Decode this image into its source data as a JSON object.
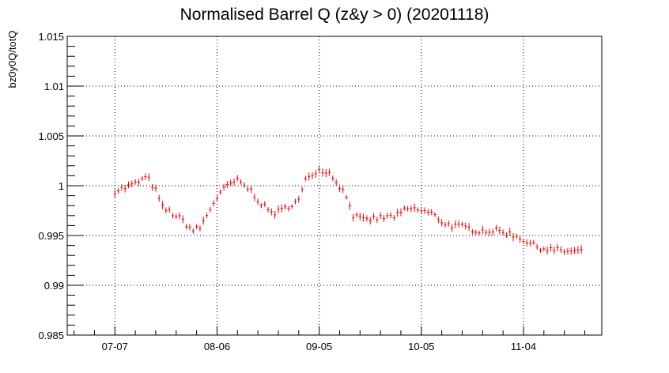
{
  "chart_data": {
    "type": "scatter",
    "title": "Normalised Barrel Q (z&y > 0) (20201118)",
    "xlabel": "",
    "ylabel": "bz0y0Q/totQ",
    "x_axis_type": "date",
    "xlim": [
      "2020-06-23",
      "2020-11-27"
    ],
    "ylim": [
      0.985,
      1.015
    ],
    "x_ticks": [
      {
        "date": "2020-07-07",
        "label": "07-07"
      },
      {
        "date": "2020-08-06",
        "label": "08-06"
      },
      {
        "date": "2020-09-05",
        "label": "09-05"
      },
      {
        "date": "2020-10-05",
        "label": "10-05"
      },
      {
        "date": "2020-11-04",
        "label": "11-04"
      }
    ],
    "y_ticks": [
      {
        "value": 0.985,
        "label": "0.985"
      },
      {
        "value": 0.99,
        "label": "0.99"
      },
      {
        "value": 0.995,
        "label": "0.995"
      },
      {
        "value": 1.0,
        "label": "1"
      },
      {
        "value": 1.005,
        "label": "1.005"
      },
      {
        "value": 1.01,
        "label": "1.01"
      },
      {
        "value": 1.015,
        "label": "1.015"
      }
    ],
    "grid": true,
    "marker_color": "#ff0000",
    "anchors": [
      [
        "2020-07-07",
        0.9995
      ],
      [
        "2020-07-10",
        0.9998
      ],
      [
        "2020-07-13",
        1.0002
      ],
      [
        "2020-07-16",
        1.0008
      ],
      [
        "2020-07-17",
        1.0006
      ],
      [
        "2020-07-19",
        0.9995
      ],
      [
        "2020-07-21",
        0.9978
      ],
      [
        "2020-07-24",
        0.9972
      ],
      [
        "2020-07-27",
        0.9965
      ],
      [
        "2020-07-29",
        0.9958
      ],
      [
        "2020-07-30",
        0.9955
      ],
      [
        "2020-08-01",
        0.9958
      ],
      [
        "2020-08-03",
        0.997
      ],
      [
        "2020-08-05",
        0.9983
      ],
      [
        "2020-08-07",
        0.9993
      ],
      [
        "2020-08-10",
        1.0002
      ],
      [
        "2020-08-12",
        1.0005
      ],
      [
        "2020-08-14",
        1.0
      ],
      [
        "2020-08-16",
        0.9995
      ],
      [
        "2020-08-19",
        0.9982
      ],
      [
        "2020-08-21",
        0.9975
      ],
      [
        "2020-08-23",
        0.9973
      ],
      [
        "2020-08-25",
        0.9975
      ],
      [
        "2020-08-27",
        0.998
      ],
      [
        "2020-08-30",
        0.9985
      ],
      [
        "2020-09-01",
        1.0005
      ],
      [
        "2020-09-02",
        1.001
      ],
      [
        "2020-09-04",
        1.0015
      ],
      [
        "2020-09-06",
        1.0016
      ],
      [
        "2020-09-08",
        1.0013
      ],
      [
        "2020-09-10",
        1.0005
      ],
      [
        "2020-09-12",
        0.9995
      ],
      [
        "2020-09-14",
        0.9982
      ],
      [
        "2020-09-15",
        0.997
      ],
      [
        "2020-09-18",
        0.9965
      ],
      [
        "2020-09-21",
        0.9967
      ],
      [
        "2020-09-24",
        0.9968
      ],
      [
        "2020-09-28",
        0.997
      ],
      [
        "2020-09-30",
        0.9975
      ],
      [
        "2020-10-02",
        0.9977
      ],
      [
        "2020-10-05",
        0.9975
      ],
      [
        "2020-10-08",
        0.9972
      ],
      [
        "2020-10-12",
        0.9962
      ],
      [
        "2020-10-14",
        0.996
      ],
      [
        "2020-10-18",
        0.9958
      ],
      [
        "2020-10-22",
        0.9955
      ],
      [
        "2020-10-26",
        0.9955
      ],
      [
        "2020-10-30",
        0.9953
      ],
      [
        "2020-11-03",
        0.9948
      ],
      [
        "2020-11-07",
        0.994
      ],
      [
        "2020-11-10",
        0.9937
      ],
      [
        "2020-11-14",
        0.9935
      ],
      [
        "2020-11-18",
        0.9934
      ],
      [
        "2020-11-21",
        0.9934
      ]
    ],
    "error_y": 0.0003
  }
}
